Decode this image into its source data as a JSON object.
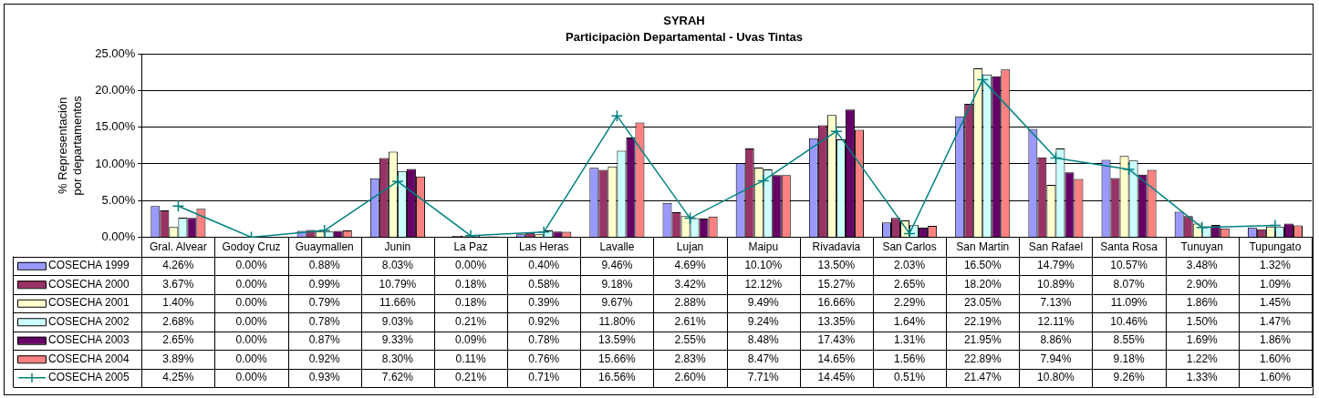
{
  "chart_data": {
    "type": "bar",
    "title": "SYRAH",
    "subtitle": "Participaciòn Departamental - Uvas Tintas",
    "ylabel": "% Representación\npor departamentos",
    "categories": [
      "Gral. Alvear",
      "Godoy Cruz",
      "Guaymallen",
      "Junin",
      "La Paz",
      "Las Heras",
      "Lavalle",
      "Lujan",
      "Maipu",
      "Rivadavia",
      "San Carlos",
      "San Martin",
      "San Rafael",
      "Santa Rosa",
      "Tunuyan",
      "Tupungato"
    ],
    "ylim": [
      0,
      25
    ],
    "yticks": [
      {
        "value": 0,
        "label": "0.00%"
      },
      {
        "value": 5,
        "label": "5.00%"
      },
      {
        "value": 10,
        "label": "10.00%"
      },
      {
        "value": 15,
        "label": "15.00%"
      },
      {
        "value": 20,
        "label": "20.00%"
      },
      {
        "value": 25,
        "label": "25.00%"
      }
    ],
    "grid": "y",
    "legend": "bottom",
    "marker": "cross",
    "series": [
      {
        "name": "COSECHA 1999",
        "color": "#9999ff",
        "values": [
          4.26,
          0,
          0.88,
          8.03,
          0,
          0.4,
          9.46,
          4.69,
          10.1,
          13.5,
          2.03,
          16.5,
          14.79,
          10.57,
          3.48,
          1.32
        ],
        "value_labels": [
          "4.26%",
          "0.00%",
          "0.88%",
          "8.03%",
          "0.00%",
          "0.40%",
          "9.46%",
          "4.69%",
          "10.10%",
          "13.50%",
          "2.03%",
          "16.50%",
          "14.79%",
          "10.57%",
          "3.48%",
          "1.32%"
        ]
      },
      {
        "name": "COSECHA 2000",
        "color": "#993366",
        "values": [
          3.67,
          0,
          0.99,
          10.79,
          0.18,
          0.58,
          9.18,
          3.42,
          12.12,
          15.27,
          2.65,
          18.2,
          10.89,
          8.07,
          2.9,
          1.09
        ],
        "value_labels": [
          "3.67%",
          "0.00%",
          "0.99%",
          "10.79%",
          "0.18%",
          "0.58%",
          "9.18%",
          "3.42%",
          "12.12%",
          "15.27%",
          "2.65%",
          "18.20%",
          "10.89%",
          "8.07%",
          "2.90%",
          "1.09%"
        ]
      },
      {
        "name": "COSECHA 2001",
        "color": "#ffffcc",
        "values": [
          1.4,
          0,
          0.79,
          11.66,
          0.18,
          0.39,
          9.67,
          2.88,
          9.49,
          16.66,
          2.29,
          23.05,
          7.13,
          11.09,
          1.86,
          1.45
        ],
        "value_labels": [
          "1.40%",
          "0.00%",
          "0.79%",
          "11.66%",
          "0.18%",
          "0.39%",
          "9.67%",
          "2.88%",
          "9.49%",
          "16.66%",
          "2.29%",
          "23.05%",
          "7.13%",
          "11.09%",
          "1.86%",
          "1.45%"
        ]
      },
      {
        "name": "COSECHA 2002",
        "color": "#ccffff",
        "values": [
          2.68,
          0,
          0.78,
          9.03,
          0.21,
          0.92,
          11.8,
          2.61,
          9.24,
          13.35,
          1.64,
          22.19,
          12.11,
          10.46,
          1.5,
          1.47
        ],
        "value_labels": [
          "2.68%",
          "0.00%",
          "0.78%",
          "9.03%",
          "0.21%",
          "0.92%",
          "11.80%",
          "2.61%",
          "9.24%",
          "13.35%",
          "1.64%",
          "22.19%",
          "12.11%",
          "10.46%",
          "1.50%",
          "1.47%"
        ]
      },
      {
        "name": "COSECHA 2003",
        "color": "#660066",
        "values": [
          2.65,
          0,
          0.87,
          9.33,
          0.09,
          0.78,
          13.59,
          2.55,
          8.48,
          17.43,
          1.31,
          21.95,
          8.86,
          8.55,
          1.69,
          1.86
        ],
        "value_labels": [
          "2.65%",
          "0.00%",
          "0.87%",
          "9.33%",
          "0.09%",
          "0.78%",
          "13.59%",
          "2.55%",
          "8.48%",
          "17.43%",
          "1.31%",
          "21.95%",
          "8.86%",
          "8.55%",
          "1.69%",
          "1.86%"
        ]
      },
      {
        "name": "COSECHA 2004",
        "color": "#ff8080",
        "values": [
          3.89,
          0,
          0.92,
          8.3,
          0.11,
          0.76,
          15.66,
          2.83,
          8.47,
          14.65,
          1.56,
          22.89,
          7.94,
          9.18,
          1.22,
          1.6
        ],
        "value_labels": [
          "3.89%",
          "0.00%",
          "0.92%",
          "8.30%",
          "0.11%",
          "0.76%",
          "15.66%",
          "2.83%",
          "8.47%",
          "14.65%",
          "1.56%",
          "22.89%",
          "7.94%",
          "9.18%",
          "1.22%",
          "1.60%"
        ]
      },
      {
        "name": "COSECHA 2005",
        "type": "line",
        "color": "#008080",
        "values": [
          4.25,
          0,
          0.93,
          7.62,
          0.21,
          0.71,
          16.56,
          2.6,
          7.71,
          14.45,
          0.51,
          21.47,
          10.8,
          9.26,
          1.33,
          1.6
        ],
        "value_labels": [
          "4.25%",
          "0.00%",
          "0.93%",
          "7.62%",
          "0.21%",
          "0.71%",
          "16.56%",
          "2.60%",
          "7.71%",
          "14.45%",
          "0.51%",
          "21.47%",
          "10.80%",
          "9.26%",
          "1.33%",
          "1.60%"
        ]
      }
    ]
  }
}
